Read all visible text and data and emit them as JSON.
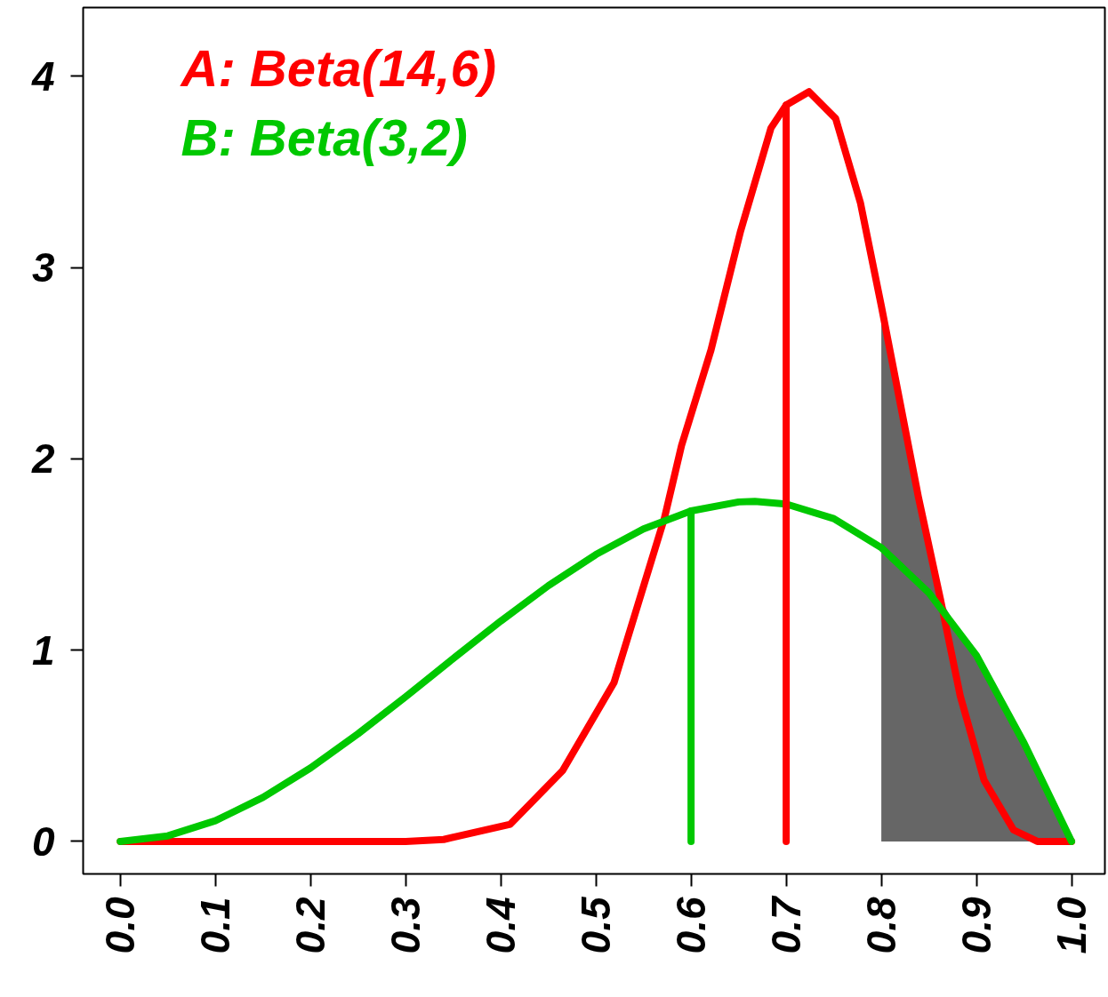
{
  "chart_data": {
    "type": "line",
    "xlim": [
      -0.039,
      1.035
    ],
    "ylim": [
      -0.17,
      4.36
    ],
    "xticks": [
      {
        "value": 0,
        "label": "0.0"
      },
      0.1,
      0.2,
      0.3,
      0.4,
      0.5,
      0.6,
      0.7,
      0.8,
      0.9,
      {
        "value": 1,
        "label": "1.0"
      }
    ],
    "yticks": [
      0,
      1,
      2,
      3,
      4
    ],
    "grid": false,
    "legend": "top left",
    "marker": "none",
    "line_style": "solid",
    "series": [
      {
        "type": "area",
        "color": "#666666",
        "x": [
          0.8,
          0.839,
          0.85,
          0.862,
          0.88,
          0.9,
          0.95,
          1.0
        ],
        "values": [
          2.8,
          1.8,
          1.5,
          1.27,
          1.115,
          0.972,
          0.514,
          0
        ]
      },
      {
        "name": "A: Beta(14,6)",
        "color": "#ff0000",
        "x": [
          0,
          0.3,
          0.34,
          0.41,
          0.465,
          0.519,
          0.572,
          0.59,
          0.621,
          0.652,
          0.684,
          0.7,
          0.724,
          0.752,
          0.778,
          0.8,
          0.839,
          0.862,
          0.883,
          0.908,
          0.939,
          0.964,
          1.0
        ],
        "values": [
          0,
          0,
          0.01,
          0.09,
          0.37,
          0.83,
          1.69,
          2.07,
          2.57,
          3.19,
          3.73,
          3.85,
          3.92,
          3.78,
          3.34,
          2.8,
          1.8,
          1.27,
          0.76,
          0.32,
          0.06,
          0,
          0
        ]
      },
      {
        "name": "B: Beta(3,2)",
        "color": "#00c800",
        "x": [
          0,
          0.05,
          0.1,
          0.15,
          0.2,
          0.25,
          0.3,
          0.35,
          0.4,
          0.45,
          0.5,
          0.55,
          0.6,
          0.65,
          0.667,
          0.7,
          0.75,
          0.8,
          0.85,
          0.9,
          0.95,
          1.0
        ],
        "values": [
          0,
          0.029,
          0.108,
          0.23,
          0.384,
          0.563,
          0.756,
          0.956,
          1.152,
          1.337,
          1.5,
          1.634,
          1.728,
          1.775,
          1.778,
          1.764,
          1.688,
          1.536,
          1.3,
          0.972,
          0.514,
          0
        ]
      },
      {
        "color": "#00c800",
        "x": [
          0.6,
          0.6
        ],
        "values": [
          0,
          1.728
        ]
      },
      {
        "color": "#ff0000",
        "x": [
          0.7,
          0.7
        ],
        "values": [
          0,
          3.85
        ]
      }
    ]
  }
}
